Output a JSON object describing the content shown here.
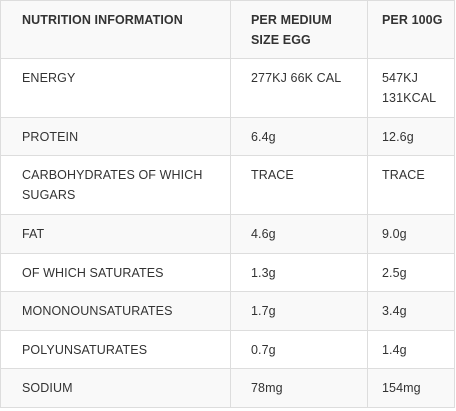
{
  "header": {
    "col1": "NUTRITION INFORMATION",
    "col2": "PER MEDIUM SIZE EGG",
    "col3": "PER 100G"
  },
  "rows": [
    {
      "name": "ENERGY",
      "per_egg": "277KJ 66K CAL",
      "per_100g": "547KJ 131KCAL"
    },
    {
      "name": "PROTEIN",
      "per_egg": "6.4g",
      "per_100g": "12.6g"
    },
    {
      "name": "CARBOHYDRATES OF WHICH SUGARS",
      "per_egg": "TRACE",
      "per_100g": "TRACE"
    },
    {
      "name": "FAT",
      "per_egg": "4.6g",
      "per_100g": "9.0g"
    },
    {
      "name": "OF WHICH SATURATES",
      "per_egg": "1.3g",
      "per_100g": "2.5g"
    },
    {
      "name": "MONONOUNSATURATES",
      "per_egg": "1.7g",
      "per_100g": "3.4g"
    },
    {
      "name": "POLYUNSATURATES",
      "per_egg": "0.7g",
      "per_100g": "1.4g"
    },
    {
      "name": "SODIUM",
      "per_egg": "78mg",
      "per_100g": "154mg"
    }
  ]
}
